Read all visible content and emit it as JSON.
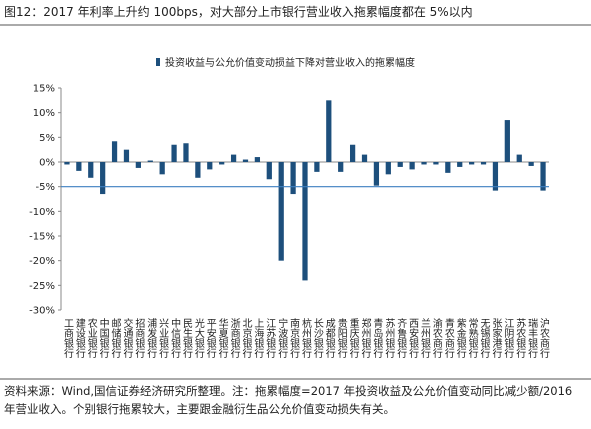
{
  "chart_data": {
    "type": "bar",
    "title": "图12：2017 年利率上升约 100bps，对大部分上市银行营业收入拖累幅度都在 5%以内",
    "legend": "投资收益与公允价值变动损益下降对营业收入的拖累幅度",
    "color": "#1d4f7c",
    "threshold": -5,
    "threshold_color": "#3d7fc1",
    "categories": [
      "工商银行",
      "建设银行",
      "农业银行",
      "中国银行",
      "邮储银行",
      "交通银行",
      "招商银行",
      "浦发银行",
      "兴业银行",
      "中信银行",
      "民生银行",
      "光大银行",
      "平安银行",
      "华夏银行",
      "浙商银行",
      "北京银行",
      "上海银行",
      "江苏银行",
      "宁波银行",
      "南京银行",
      "杭州银行",
      "长沙银行",
      "成都银行",
      "贵阳银行",
      "重庆银行",
      "郑州银行",
      "青岛银行",
      "苏州银行",
      "齐鲁银行",
      "西安银行",
      "兰州银行",
      "渝农商行",
      "青农商行",
      "紫金银行",
      "常熟银行",
      "无锡银行",
      "张家港行",
      "江阴银行",
      "苏农银行",
      "瑞丰银行",
      "沪农商行"
    ],
    "values": [
      -0.5,
      -1.8,
      -3.2,
      -6.5,
      4.2,
      2.5,
      -1.2,
      0.3,
      -2.5,
      3.5,
      3.8,
      -3.2,
      -1.5,
      -0.5,
      1.5,
      0.5,
      1.0,
      -3.5,
      -20,
      -6.5,
      -24,
      -2.0,
      12.5,
      -2.0,
      3.5,
      1.5,
      -4.8,
      -2.5,
      -1.0,
      -1.5,
      -0.5,
      -0.5,
      -2.2,
      -1.0,
      -0.5,
      -0.5,
      -5.8,
      8.5,
      1.5,
      -0.8,
      -5.8
    ],
    "ylim": [
      -30,
      15
    ],
    "yticks": [
      {
        "value": 15,
        "label": "15%"
      },
      {
        "value": 10,
        "label": "10%"
      },
      {
        "value": 5,
        "label": "5%"
      },
      {
        "value": 0,
        "label": "0%"
      },
      {
        "value": -5,
        "label": "-5%"
      },
      {
        "value": -10,
        "label": "-10%"
      },
      {
        "value": -15,
        "label": "-15%"
      },
      {
        "value": -20,
        "label": "-20%"
      },
      {
        "value": -25,
        "label": "-25%"
      },
      {
        "value": -30,
        "label": "-30%"
      }
    ],
    "source": [
      "资料来源：Wind,国信证券经济研究所整理。注：拖累幅度=2017 年投资收益及公允价值变动同比减少额/2016",
      "年营业收入。个别银行拖累较大，主要跟金融衍生品公允价值变动损失有关。"
    ]
  }
}
